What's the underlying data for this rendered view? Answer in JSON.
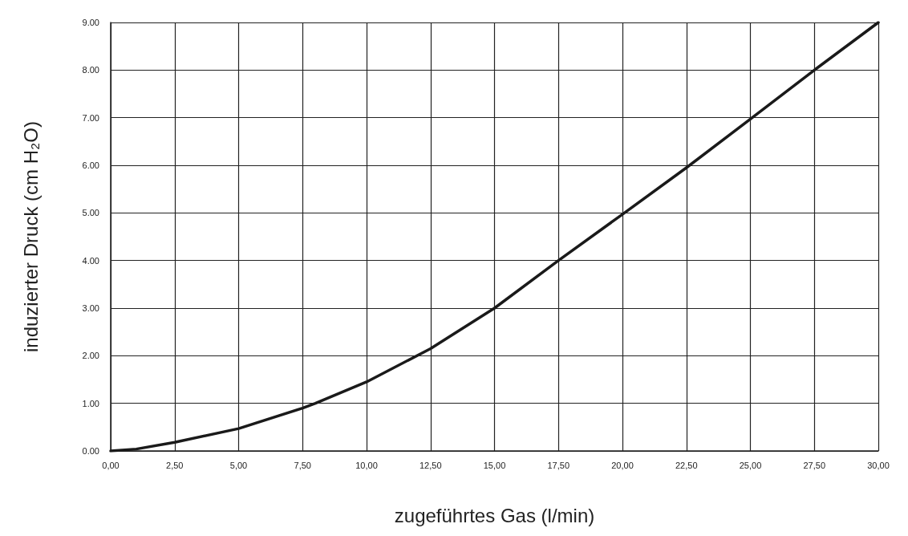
{
  "chart_data": {
    "type": "line",
    "xlabel": "zugeführtes Gas (l/min)",
    "ylabel": "induzierter Druck (cm H₂O)",
    "x": [
      0,
      1,
      2.5,
      5,
      7.5,
      8,
      10,
      12.5,
      15,
      17.5,
      20,
      22.5,
      25,
      27.5,
      30
    ],
    "series": [
      {
        "color": "#1a1a1a",
        "values": [
          0,
          0.04,
          0.18,
          0.47,
          0.9,
          1.0,
          1.45,
          2.15,
          3.0,
          4.0,
          4.97,
          5.95,
          6.97,
          8.0,
          9.0
        ]
      }
    ],
    "xlim": [
      0,
      30
    ],
    "ylim": [
      0,
      9
    ],
    "xticks": [
      {
        "value": 0,
        "label": "0,00"
      },
      {
        "value": 2.5,
        "label": "2,50"
      },
      {
        "value": 5,
        "label": "5,00"
      },
      {
        "value": 7.5,
        "label": "7,50"
      },
      {
        "value": 10,
        "label": "10,00"
      },
      {
        "value": 12.5,
        "label": "12,50"
      },
      {
        "value": 15,
        "label": "15,00"
      },
      {
        "value": 17.5,
        "label": "17,50"
      },
      {
        "value": 20,
        "label": "20,00"
      },
      {
        "value": 22.5,
        "label": "22,50"
      },
      {
        "value": 25,
        "label": "25,00"
      },
      {
        "value": 27.5,
        "label": "27,50"
      },
      {
        "value": 30,
        "label": "30,00"
      }
    ],
    "yticks": [
      {
        "value": 0,
        "label": "0.00"
      },
      {
        "value": 1,
        "label": "1.00"
      },
      {
        "value": 2,
        "label": "2.00"
      },
      {
        "value": 3,
        "label": "3.00"
      },
      {
        "value": 4,
        "label": "4.00"
      },
      {
        "value": 5,
        "label": "5.00"
      },
      {
        "value": 6,
        "label": "6.00"
      },
      {
        "value": 7,
        "label": "7.00"
      },
      {
        "value": 8,
        "label": "8.00"
      },
      {
        "value": 9,
        "label": "9.00"
      }
    ],
    "grid": true,
    "marker": "none",
    "line_style": "solid"
  }
}
